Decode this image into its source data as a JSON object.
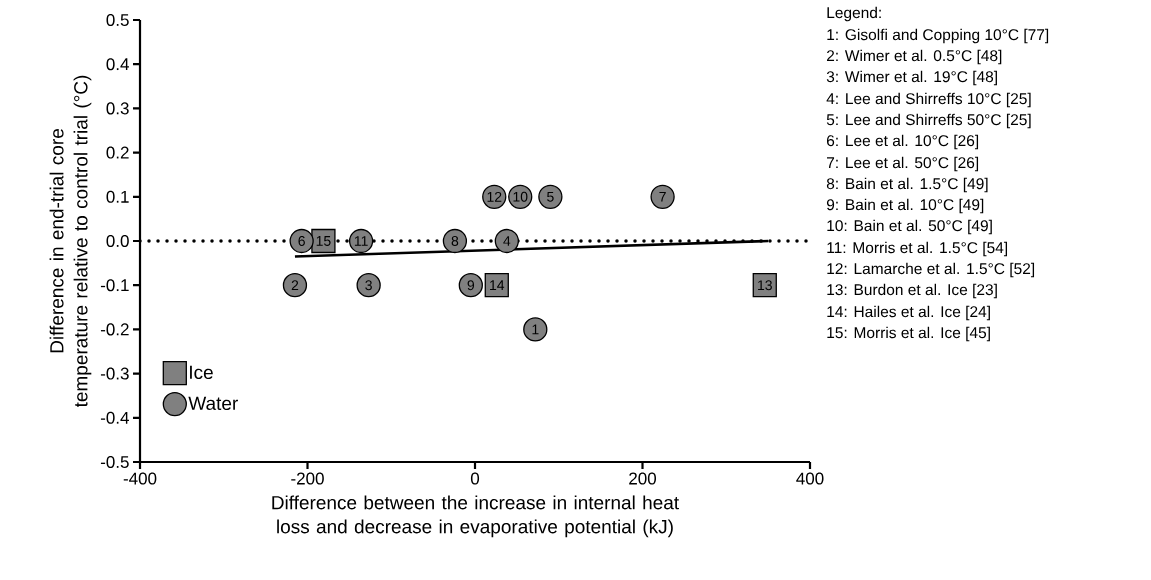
{
  "chart_data": {
    "type": "scatter",
    "xlabel": "Difference between the increase in internal heat loss and decrease in evaporative potential (kJ)",
    "ylabel": "Difference in end-trial core temperature relative to control trial (°C)",
    "xlim": [
      -400,
      400
    ],
    "xticks": [
      -400,
      -200,
      0,
      200,
      400
    ],
    "ylim": [
      -0.5,
      0.5
    ],
    "yticks": [
      -0.5,
      -0.4,
      -0.3,
      -0.2,
      -0.1,
      {
        "value": 0,
        "label": "0.0"
      },
      0.1,
      0.2,
      0.3,
      0.4,
      0.5
    ],
    "legend": "bottom left",
    "grid": false,
    "series": [
      {
        "name": "Ice",
        "color": "#808080",
        "marker": "square",
        "x": [
          346,
          26,
          -181
        ],
        "values": [
          -0.1,
          -0.1,
          0.0
        ]
      },
      {
        "name": "Water",
        "color": "#808080",
        "marker": "circle",
        "x": [
          72,
          -215,
          -127,
          38,
          90,
          -207,
          224,
          -24,
          -5,
          54,
          -136,
          23
        ],
        "values": [
          -0.2,
          -0.1,
          -0.1,
          0.0,
          0.1,
          0.0,
          0.1,
          0.0,
          -0.1,
          0.1,
          0.0,
          0.1
        ]
      },
      {
        "type": "line",
        "color": "#000000",
        "marker": "none",
        "x": [
          -215,
          350
        ],
        "values": [
          -0.035,
          0.0
        ]
      }
    ],
    "ref_lines": [
      {
        "axis": "y",
        "value": 0,
        "line_style": "dotted",
        "color": "#000000"
      }
    ],
    "annotations": [
      {
        "text": "1",
        "x": 72,
        "y": -0.2
      },
      {
        "text": "2",
        "x": -215,
        "y": -0.1
      },
      {
        "text": "3",
        "x": -127,
        "y": -0.1
      },
      {
        "text": "4",
        "x": 38,
        "y": 0.0
      },
      {
        "text": "5",
        "x": 90,
        "y": 0.1
      },
      {
        "text": "6",
        "x": -207,
        "y": 0.0
      },
      {
        "text": "7",
        "x": 224,
        "y": 0.1
      },
      {
        "text": "8",
        "x": -24,
        "y": 0.0
      },
      {
        "text": "9",
        "x": -5,
        "y": -0.1
      },
      {
        "text": "10",
        "x": 54,
        "y": 0.1
      },
      {
        "text": "11",
        "x": -136,
        "y": 0.0
      },
      {
        "text": "12",
        "x": 23,
        "y": 0.1
      },
      {
        "text": "13",
        "x": 346,
        "y": -0.1
      },
      {
        "text": "14",
        "x": 26,
        "y": -0.1
      },
      {
        "text": "15",
        "x": -181,
        "y": 0.0
      },
      "Legend:",
      "1: Gisolfi and Copping 10°C [77]",
      "2: Wimer et al. 0.5°C [48]",
      "3: Wimer et al. 19°C [48]",
      "4: Lee and Shirreffs 10°C [25]",
      "5: Lee and Shirreffs 50°C [25]",
      "6: Lee et al. 10°C [26]",
      "7: Lee et al. 50°C [26]",
      "8: Bain et al. 1.5°C [49]",
      "9: Bain et al. 10°C [49]",
      "10: Bain et al. 50°C [49]",
      "11: Morris et al. 1.5°C [54]",
      "12: Lamarche et al. 1.5°C [52]",
      "13: Burdon et al. Ice [23]",
      "14: Hailes et al. Ice [24]",
      "15: Morris et al. Ice [45]"
    ]
  }
}
